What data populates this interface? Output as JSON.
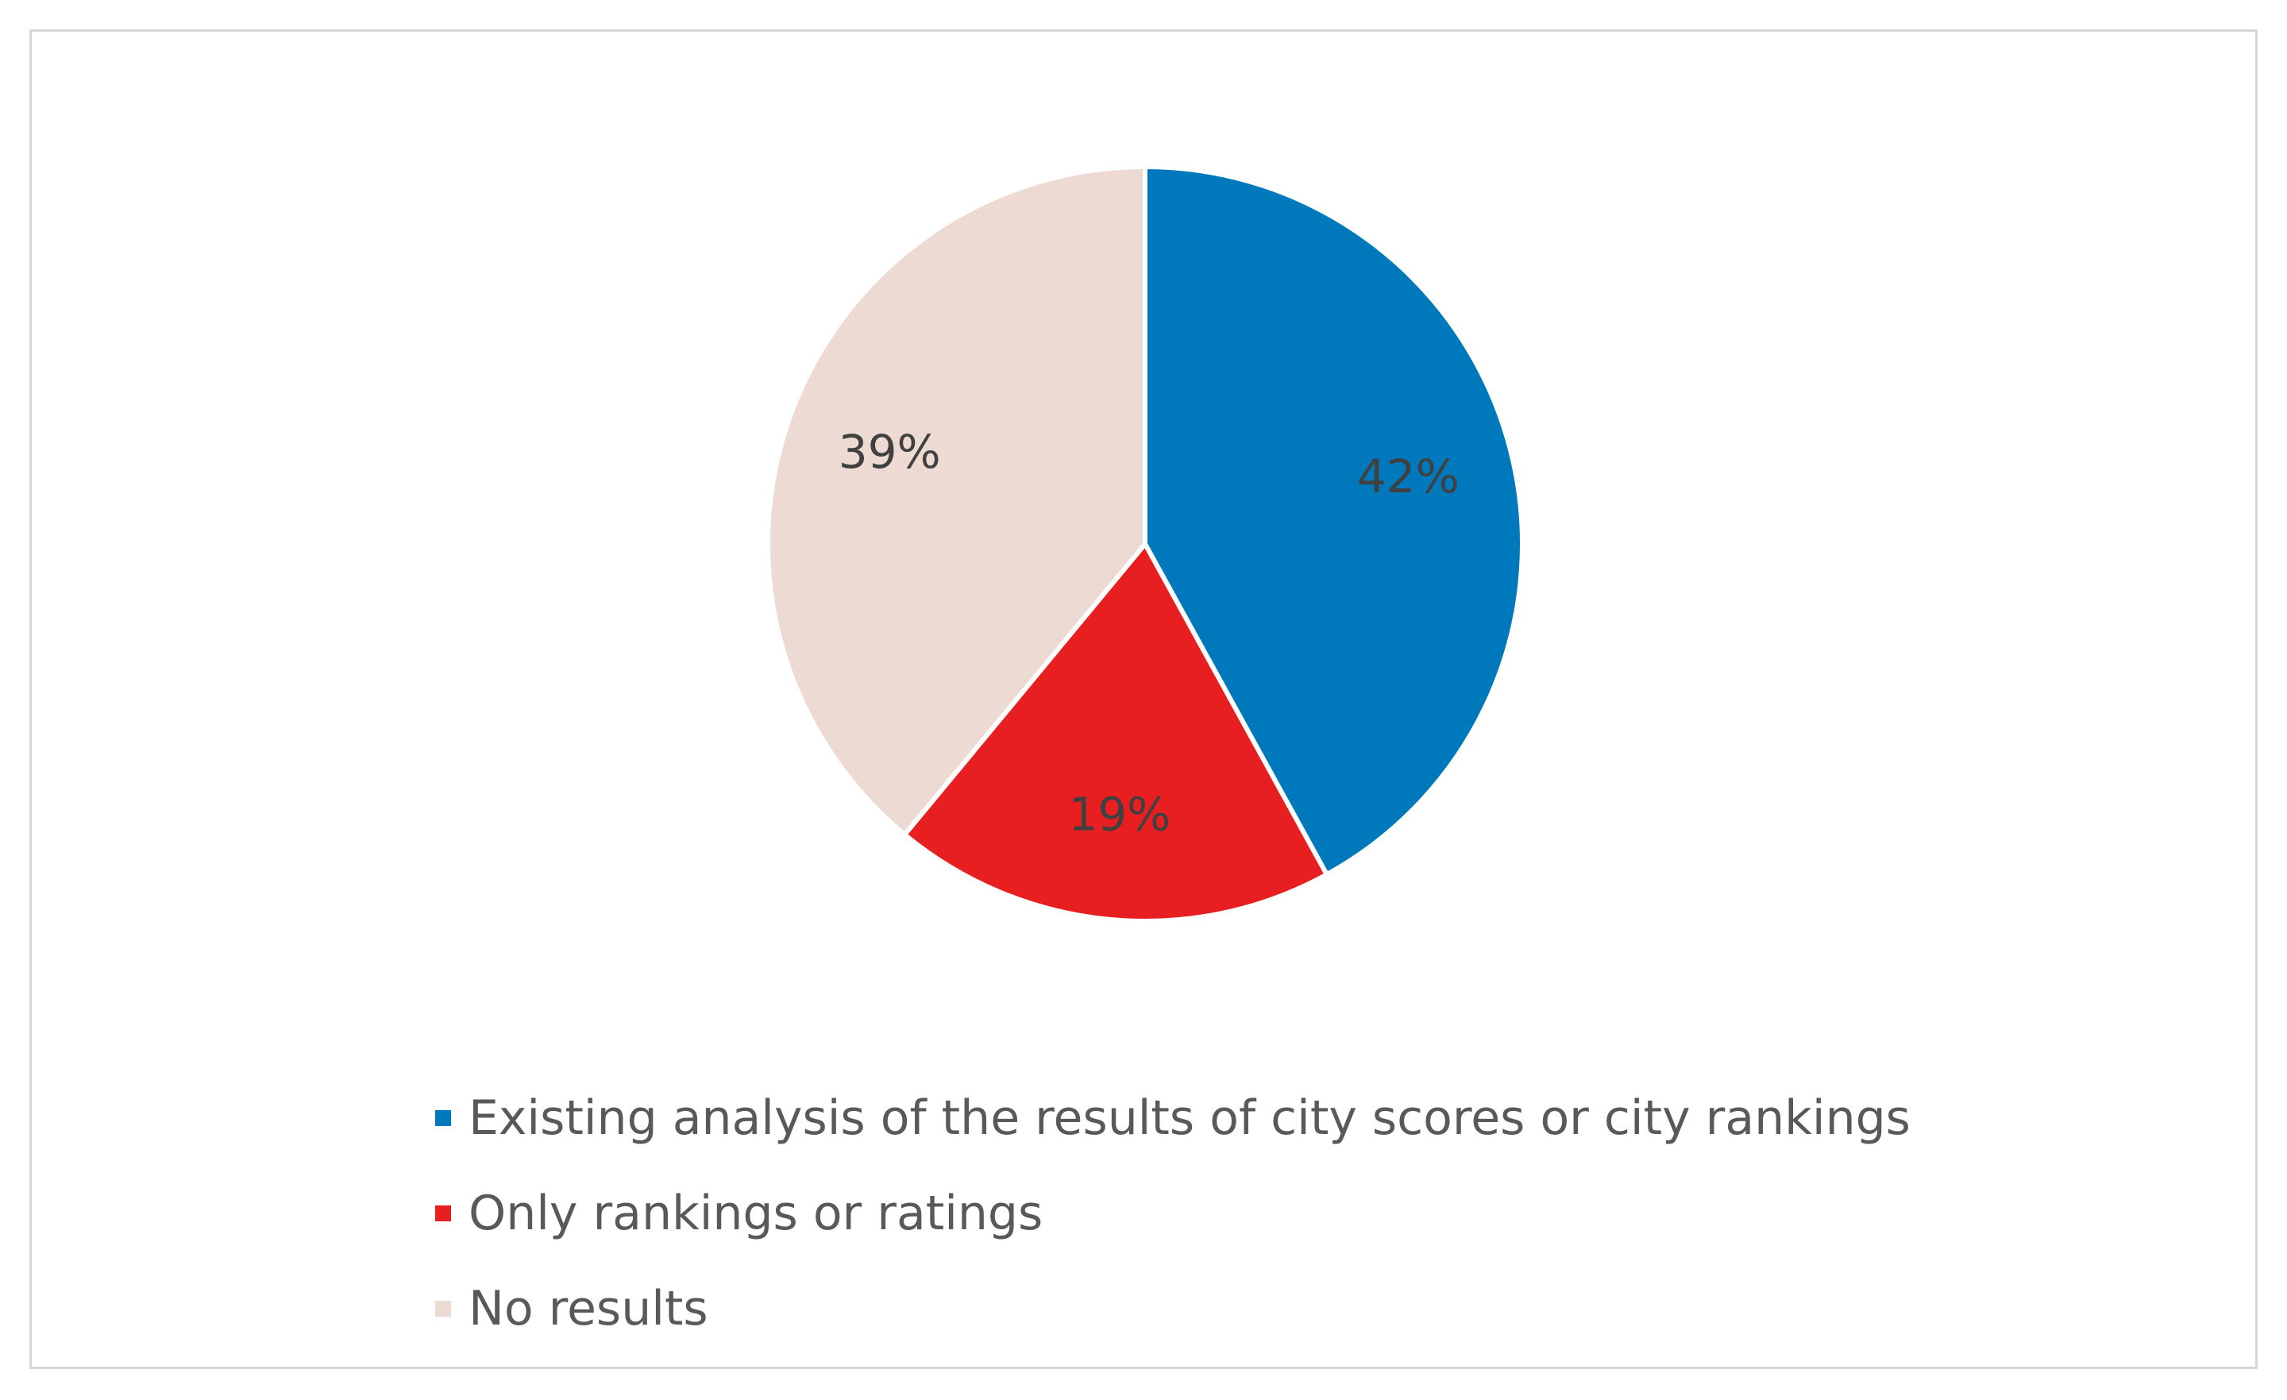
{
  "chart_data": {
    "type": "pie",
    "categories": [
      "Existing analysis of the results of city scores or city rankings",
      "Only rankings or ratings",
      "No results"
    ],
    "values": [
      42,
      19,
      39
    ],
    "labels": [
      "42%",
      "19%",
      "39%"
    ],
    "colors": [
      "#0079BC",
      "#E81F21",
      "#EDDBD3"
    ],
    "legend_position": "bottom",
    "start_angle": "12 o'clock, clockwise"
  },
  "legend": {
    "items": [
      {
        "label": "Existing analysis of the results of city scores or city rankings",
        "color": "#0079BC"
      },
      {
        "label": "Only rankings or ratings",
        "color": "#E81F21"
      },
      {
        "label": "No results",
        "color": "#EDDBD3"
      }
    ]
  }
}
